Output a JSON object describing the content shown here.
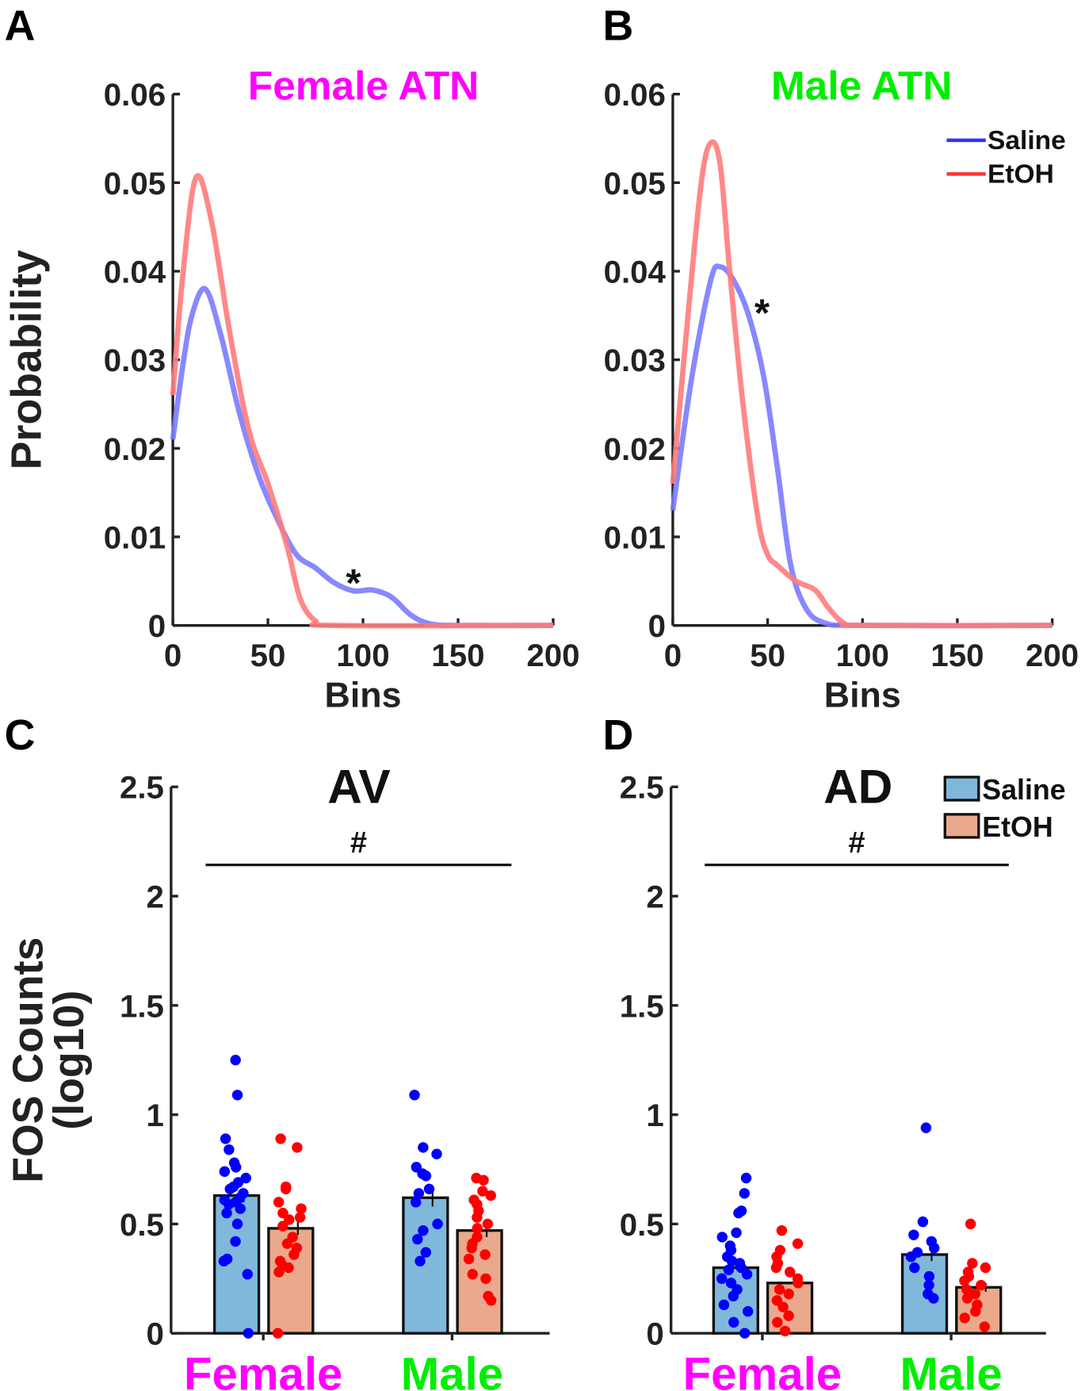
{
  "panel_labels": [
    "A",
    "B",
    "C",
    "D"
  ],
  "chart_data": [
    {
      "type": "line",
      "panel": "A",
      "title": "Female ATN",
      "title_color": "#ff00ff",
      "xlabel": "Bins",
      "ylabel": "Probability",
      "xlim": [
        0,
        200
      ],
      "ylim": [
        0,
        0.06
      ],
      "xticks": [
        "0",
        "50",
        "100",
        "150",
        "200"
      ],
      "yticks": [
        "0",
        "0.01",
        "0.02",
        "0.03",
        "0.04",
        "0.05",
        "0.06"
      ],
      "annotation": "*",
      "annotation_at": [
        95,
        0.0055
      ],
      "series": [
        {
          "name": "Saline",
          "color": "#7b7bff",
          "points": [
            [
              0,
              0.021
            ],
            [
              5,
              0.029
            ],
            [
              10,
              0.035
            ],
            [
              17,
              0.038
            ],
            [
              25,
              0.033
            ],
            [
              35,
              0.024
            ],
            [
              45,
              0.017
            ],
            [
              55,
              0.012
            ],
            [
              65,
              0.008
            ],
            [
              75,
              0.0065
            ],
            [
              85,
              0.0048
            ],
            [
              95,
              0.0039
            ],
            [
              105,
              0.004
            ],
            [
              115,
              0.0032
            ],
            [
              125,
              0.0012
            ],
            [
              135,
              0.0002
            ],
            [
              150,
              0
            ],
            [
              200,
              0
            ]
          ]
        },
        {
          "name": "EtOH",
          "color": "#ff7b7b",
          "points": [
            [
              0,
              0.026
            ],
            [
              5,
              0.039
            ],
            [
              12,
              0.0505
            ],
            [
              20,
              0.046
            ],
            [
              30,
              0.033
            ],
            [
              40,
              0.022
            ],
            [
              50,
              0.016
            ],
            [
              60,
              0.009
            ],
            [
              67,
              0.003
            ],
            [
              75,
              0.0005
            ],
            [
              85,
              0
            ],
            [
              200,
              0
            ]
          ]
        }
      ]
    },
    {
      "type": "line",
      "panel": "B",
      "title": "Male ATN",
      "title_color": "#00ee00",
      "xlabel": "Bins",
      "ylabel": "",
      "xlim": [
        0,
        200
      ],
      "ylim": [
        0,
        0.06
      ],
      "xticks": [
        "0",
        "50",
        "100",
        "150",
        "200"
      ],
      "yticks": [
        "0",
        "0.01",
        "0.02",
        "0.03",
        "0.04",
        "0.05",
        "0.06"
      ],
      "annotation": "*",
      "annotation_at": [
        47,
        0.036
      ],
      "legend": {
        "position": "top-right",
        "entries": [
          {
            "label": "Saline",
            "color": "#3333ff"
          },
          {
            "label": "EtOH",
            "color": "#ff3333"
          }
        ]
      },
      "series": [
        {
          "name": "Saline",
          "color": "#7b7bff",
          "points": [
            [
              0,
              0.013
            ],
            [
              10,
              0.028
            ],
            [
              20,
              0.039
            ],
            [
              25,
              0.0405
            ],
            [
              32,
              0.039
            ],
            [
              40,
              0.035
            ],
            [
              48,
              0.028
            ],
            [
              55,
              0.018
            ],
            [
              62,
              0.007
            ],
            [
              70,
              0.002
            ],
            [
              80,
              0.0003
            ],
            [
              100,
              0
            ],
            [
              200,
              0
            ]
          ]
        },
        {
          "name": "EtOH",
          "color": "#ff7b7b",
          "points": [
            [
              0,
              0.016
            ],
            [
              8,
              0.035
            ],
            [
              15,
              0.05
            ],
            [
              20,
              0.0545
            ],
            [
              25,
              0.052
            ],
            [
              30,
              0.04
            ],
            [
              37,
              0.025
            ],
            [
              45,
              0.012
            ],
            [
              50,
              0.008
            ],
            [
              55,
              0.0068
            ],
            [
              65,
              0.005
            ],
            [
              75,
              0.004
            ],
            [
              82,
              0.002
            ],
            [
              90,
              0.0003
            ],
            [
              100,
              0
            ],
            [
              200,
              0
            ]
          ]
        }
      ]
    },
    {
      "type": "bar",
      "panel": "C",
      "title": "AV",
      "ylabel": "FOS Counts (log10)",
      "ylabel_lines": [
        "FOS Counts",
        "(log10)"
      ],
      "ylim": [
        0,
        2.5
      ],
      "yticks": [
        "0",
        "0.5",
        "1",
        "1.5",
        "2",
        "2.5"
      ],
      "categories": [
        {
          "label": "Female",
          "color": "#ff00ff"
        },
        {
          "label": "Male",
          "color": "#00ee00"
        }
      ],
      "significance": "#",
      "series": [
        {
          "name": "Saline",
          "fill": "#80b8dc",
          "dot": "#0000ff",
          "values": [
            0.63,
            0.62
          ],
          "sem": [
            0.03,
            0.04
          ],
          "points": [
            [
              1.25,
              1.09,
              0.89,
              0.84,
              0.78,
              0.76,
              0.74,
              0.71,
              0.69,
              0.67,
              0.66,
              0.64,
              0.62,
              0.61,
              0.6,
              0.59,
              0.57,
              0.55,
              0.5,
              0.42,
              0.34,
              0.33,
              0.27,
              0.0
            ],
            [
              1.09,
              0.85,
              0.82,
              0.76,
              0.73,
              0.72,
              0.66,
              0.64,
              0.6,
              0.5,
              0.47,
              0.43,
              0.37,
              0.33
            ]
          ]
        },
        {
          "name": "EtOH",
          "fill": "#eaa98c",
          "dot": "#ff0000",
          "values": [
            0.48,
            0.47
          ],
          "sem": [
            0.03,
            0.03
          ],
          "points": [
            [
              0.89,
              0.85,
              0.67,
              0.66,
              0.6,
              0.57,
              0.55,
              0.53,
              0.52,
              0.49,
              0.44,
              0.41,
              0.39,
              0.36,
              0.33,
              0.31,
              0.3,
              0.28,
              0.0
            ],
            [
              0.71,
              0.7,
              0.65,
              0.63,
              0.61,
              0.59,
              0.56,
              0.53,
              0.5,
              0.48,
              0.44,
              0.41,
              0.39,
              0.36,
              0.34,
              0.27,
              0.25,
              0.17,
              0.15
            ]
          ]
        }
      ]
    },
    {
      "type": "bar",
      "panel": "D",
      "title": "AD",
      "ylabel": "",
      "ylim": [
        0,
        2.5
      ],
      "yticks": [
        "0",
        "0.5",
        "1",
        "1.5",
        "2",
        "2.5"
      ],
      "categories": [
        {
          "label": "Female",
          "color": "#ff00ff"
        },
        {
          "label": "Male",
          "color": "#00ee00"
        }
      ],
      "significance": "#",
      "legend": {
        "position": "top-right",
        "entries": [
          {
            "label": "Saline",
            "color": "#80b8dc"
          },
          {
            "label": "EtOH",
            "color": "#eaa98c"
          }
        ]
      },
      "series": [
        {
          "name": "Saline",
          "fill": "#80b8dc",
          "dot": "#0000ff",
          "values": [
            0.3,
            0.36
          ],
          "sem": [
            0.02,
            0.03
          ],
          "points": [
            [
              0.71,
              0.64,
              0.56,
              0.55,
              0.46,
              0.44,
              0.4,
              0.38,
              0.35,
              0.33,
              0.32,
              0.3,
              0.29,
              0.27,
              0.25,
              0.23,
              0.2,
              0.17,
              0.13,
              0.1,
              0.05,
              0.0
            ],
            [
              0.94,
              0.51,
              0.45,
              0.42,
              0.39,
              0.37,
              0.35,
              0.3,
              0.26,
              0.22,
              0.18,
              0.16
            ]
          ]
        },
        {
          "name": "EtOH",
          "fill": "#eaa98c",
          "dot": "#ff0000",
          "values": [
            0.23,
            0.21
          ],
          "sem": [
            0.02,
            0.02
          ],
          "points": [
            [
              0.47,
              0.41,
              0.38,
              0.35,
              0.32,
              0.3,
              0.28,
              0.25,
              0.23,
              0.2,
              0.18,
              0.15,
              0.12,
              0.08,
              0.05,
              0.01
            ],
            [
              0.5,
              0.32,
              0.3,
              0.28,
              0.26,
              0.24,
              0.22,
              0.2,
              0.18,
              0.16,
              0.13,
              0.1,
              0.07,
              0.03
            ]
          ]
        }
      ]
    }
  ]
}
